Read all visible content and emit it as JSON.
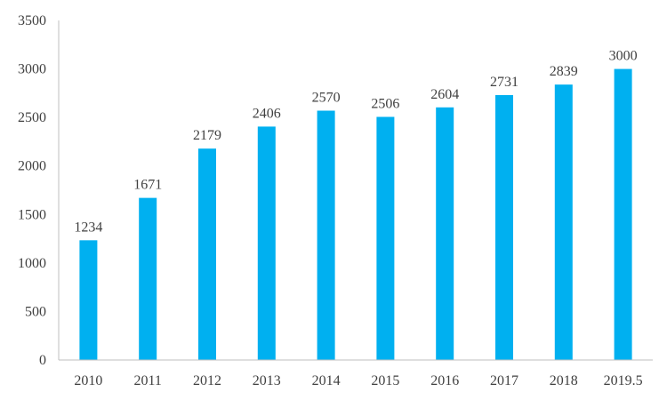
{
  "chart_data": {
    "type": "bar",
    "title": "",
    "xlabel": "",
    "ylabel": "",
    "categories": [
      "2010",
      "2011",
      "2012",
      "2013",
      "2014",
      "2015",
      "2016",
      "2017",
      "2018",
      "2019.5"
    ],
    "values": [
      1234,
      1671,
      2179,
      2406,
      2570,
      2506,
      2604,
      2731,
      2839,
      3000
    ],
    "ylim": [
      0,
      3500
    ],
    "yticks": [
      0,
      500,
      1000,
      1500,
      2000,
      2500,
      3000,
      3500
    ],
    "grid": false,
    "legend": "none",
    "bar_color": "#00B0F0",
    "axis_color": "#BFBFBF",
    "text_color": "#404040"
  }
}
